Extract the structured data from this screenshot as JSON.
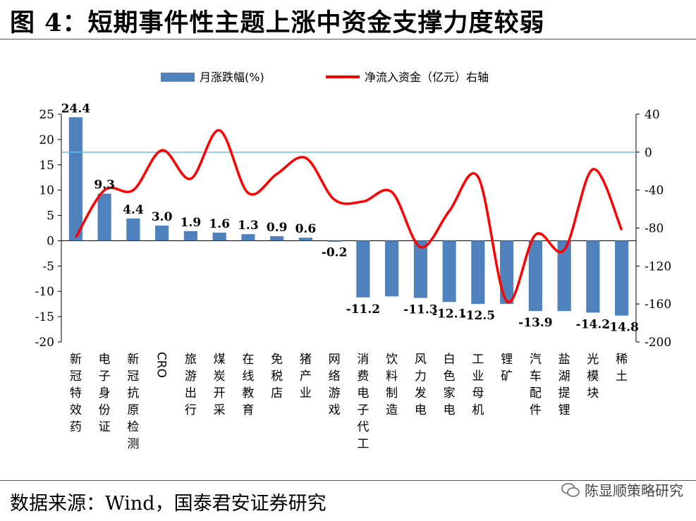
{
  "figure": {
    "title": "图 4：短期事件性主题上涨中资金支撑力度较弱",
    "source": "数据来源：Wind，国泰君安证券研究",
    "watermark": "陈显顺策略研究"
  },
  "chart_data": {
    "type": "bar+line",
    "categories": [
      "新冠特效药",
      "电子身份证",
      "新冠抗原检测",
      "CRO",
      "旅游出行",
      "煤炭开采",
      "在线教育",
      "免税店",
      "猪产业",
      "网络游戏",
      "消费电子代工",
      "饮料制造",
      "风力发电",
      "白色家电",
      "工业母机",
      "锂矿",
      "汽车配件",
      "盐湖提锂",
      "光模块",
      "稀土"
    ],
    "series": [
      {
        "name": "月涨跌幅(%)",
        "type": "bar",
        "axis": "left",
        "values": [
          24.4,
          9.3,
          4.4,
          3.0,
          1.9,
          1.6,
          1.3,
          0.9,
          0.6,
          -0.2,
          -11.2,
          -11.0,
          -11.3,
          -12.1,
          -12.5,
          -12.5,
          -13.9,
          -13.9,
          -14.2,
          -14.8
        ],
        "labels": [
          "24.4",
          "9.3",
          "4.4",
          "3.0",
          "1.9",
          "1.6",
          "1.3",
          "0.9",
          "0.6",
          "-0.2",
          "-11.2",
          "",
          "-11.3",
          "-12.1",
          "-12.5",
          "",
          "-13.9",
          "",
          "-14.2",
          "-14.8"
        ],
        "color": "#4f81bd"
      },
      {
        "name": "净流入资金（亿元）右轴",
        "type": "line",
        "axis": "right",
        "values": [
          -90,
          -40,
          -40,
          2,
          -28,
          23,
          -43,
          -23,
          -6,
          -50,
          -52,
          -42,
          -100,
          -62,
          -26,
          -157,
          -87,
          -103,
          -18,
          -82
        ],
        "color": "#ff0000"
      }
    ],
    "left_axis": {
      "min": -20,
      "max": 25,
      "ticks": [
        -20,
        -15,
        -10,
        -5,
        0,
        5,
        10,
        15,
        20,
        25
      ]
    },
    "right_axis": {
      "min": -200,
      "max": 40,
      "ticks": [
        -200,
        -160,
        -120,
        -80,
        -40,
        0,
        40
      ]
    },
    "reference_line": {
      "value": 0,
      "axis": "right",
      "color": "#5bc2e7"
    },
    "legend": "top-center"
  }
}
